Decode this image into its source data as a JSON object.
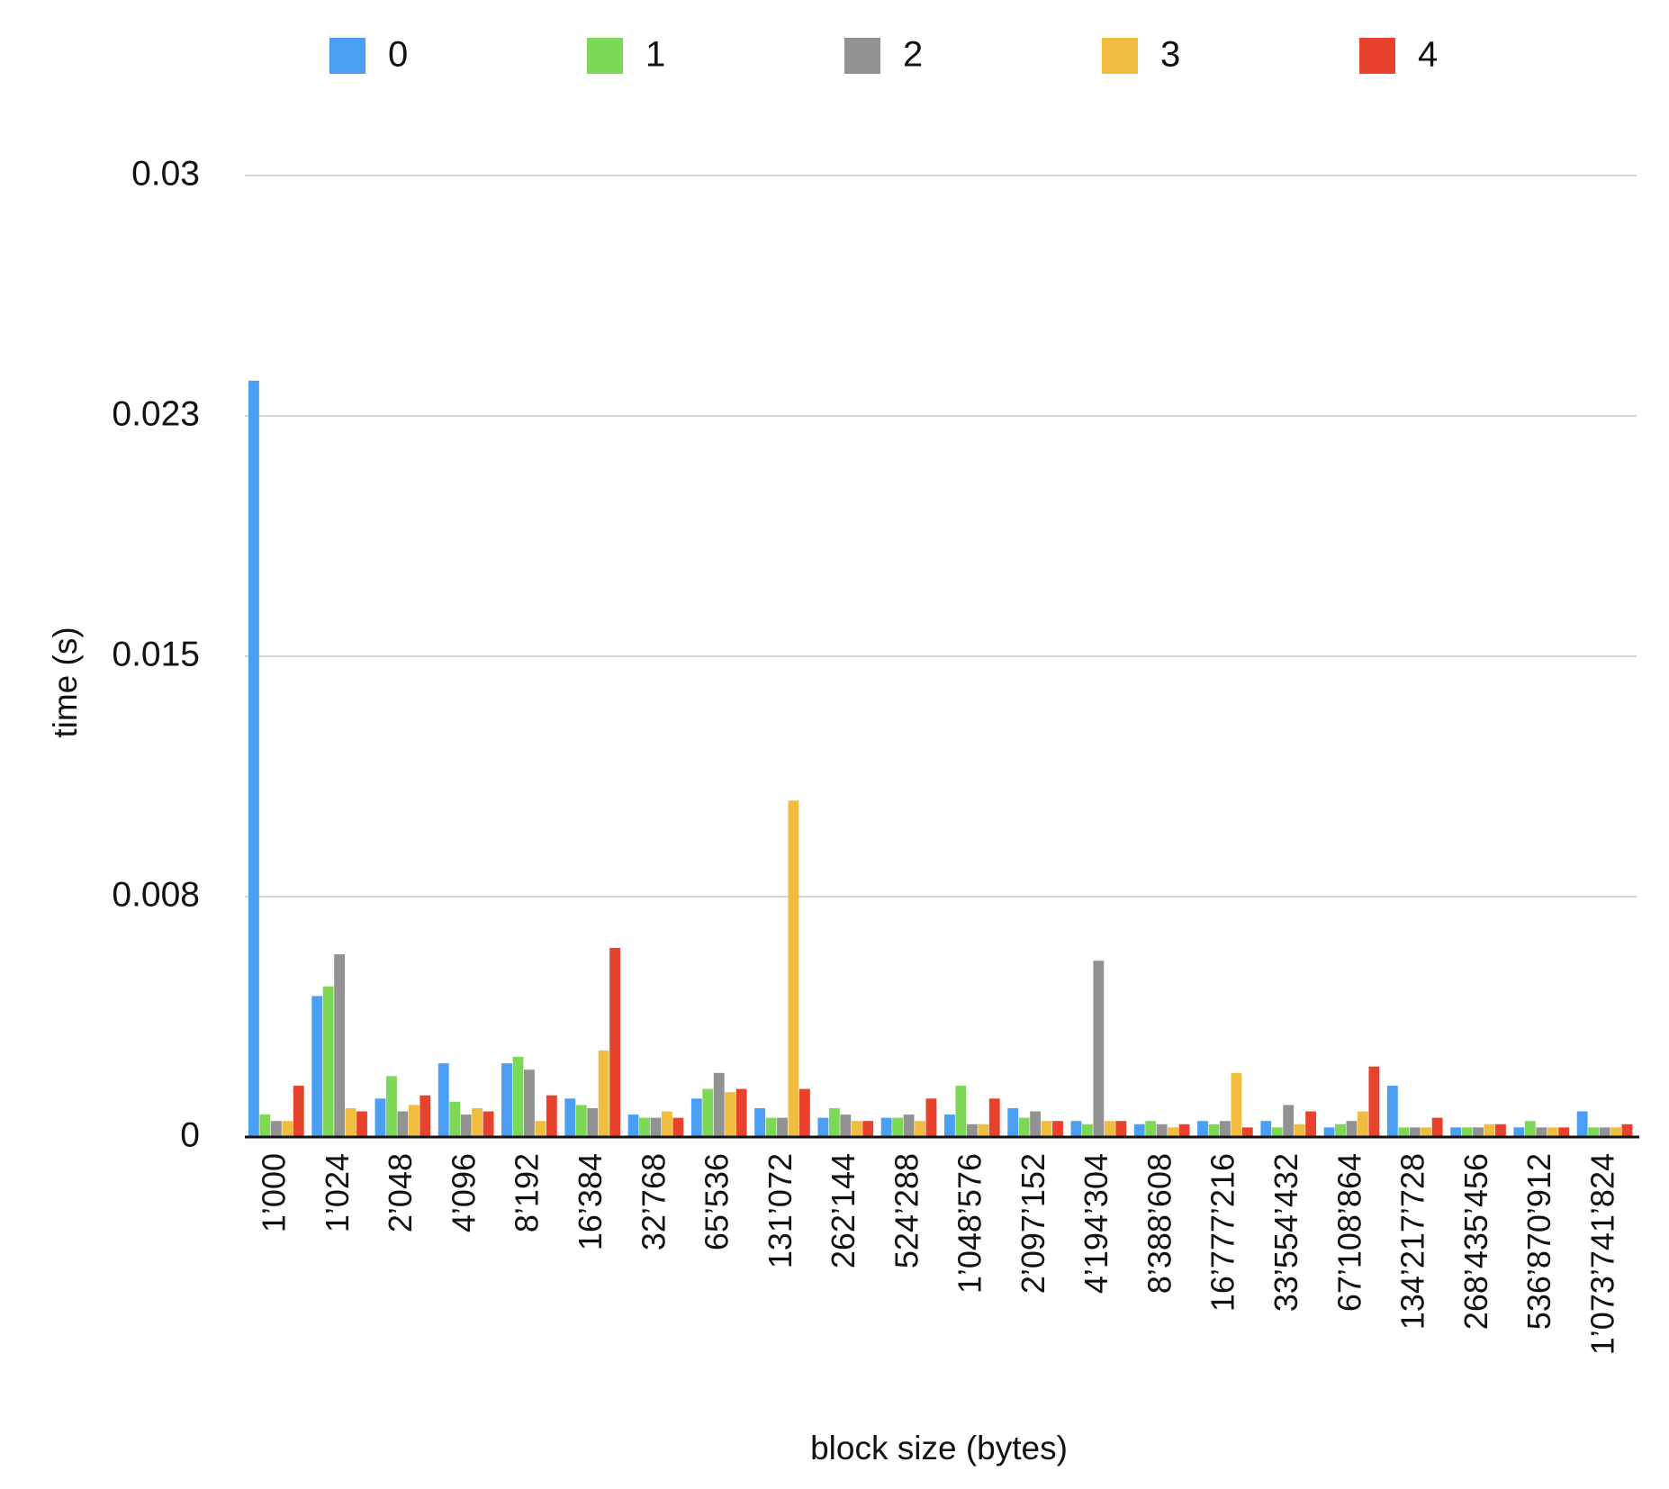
{
  "chart_data": {
    "type": "bar",
    "title": "",
    "xlabel": "block size (bytes)",
    "ylabel": "time (s)",
    "ylim": [
      0,
      0.03
    ],
    "yticks": [
      0,
      0.0075,
      0.015,
      0.0225,
      0.03
    ],
    "ytick_labels": [
      "0",
      "0.008",
      "0.015",
      "0.023",
      "0.03"
    ],
    "grid": true,
    "legend_position": "top",
    "categories": [
      "1’000",
      "1’024",
      "2’048",
      "4’096",
      "8’192",
      "16’384",
      "32’768",
      "65’536",
      "131’072",
      "262’144",
      "524’288",
      "1’048’576",
      "2’097’152",
      "4’194’304",
      "8’388’608",
      "16’777’216",
      "33’554’432",
      "67’108’864",
      "134’217’728",
      "268’435’456",
      "536’870’912",
      "1’073’741’824"
    ],
    "series": [
      {
        "name": "0",
        "color": "#4a9ff5",
        "values": [
          0.0236,
          0.0044,
          0.0012,
          0.0023,
          0.0023,
          0.0012,
          0.0007,
          0.0012,
          0.0009,
          0.0006,
          0.0006,
          0.0007,
          0.0009,
          0.0005,
          0.0004,
          0.0005,
          0.0005,
          0.0003,
          0.0016,
          0.0003,
          0.0003,
          0.0008
        ]
      },
      {
        "name": "1",
        "color": "#7dd855",
        "values": [
          0.0007,
          0.0047,
          0.0019,
          0.0011,
          0.0025,
          0.001,
          0.0006,
          0.0015,
          0.0006,
          0.0009,
          0.0006,
          0.0016,
          0.0006,
          0.0004,
          0.0005,
          0.0004,
          0.0003,
          0.0004,
          0.0003,
          0.0003,
          0.0005,
          0.0003
        ]
      },
      {
        "name": "2",
        "color": "#929292",
        "values": [
          0.0005,
          0.0057,
          0.0008,
          0.0007,
          0.0021,
          0.0009,
          0.0006,
          0.002,
          0.0006,
          0.0007,
          0.0007,
          0.0004,
          0.0008,
          0.0055,
          0.0004,
          0.0005,
          0.001,
          0.0005,
          0.0003,
          0.0003,
          0.0003,
          0.0003
        ]
      },
      {
        "name": "3",
        "color": "#f0bd3f",
        "values": [
          0.0005,
          0.0009,
          0.001,
          0.0009,
          0.0005,
          0.0027,
          0.0008,
          0.0014,
          0.0105,
          0.0005,
          0.0005,
          0.0004,
          0.0005,
          0.0005,
          0.0003,
          0.002,
          0.0004,
          0.0008,
          0.0003,
          0.0004,
          0.0003,
          0.0003
        ]
      },
      {
        "name": "4",
        "color": "#e8422c",
        "values": [
          0.0016,
          0.0008,
          0.0013,
          0.0008,
          0.0013,
          0.0059,
          0.0006,
          0.0015,
          0.0015,
          0.0005,
          0.0012,
          0.0012,
          0.0005,
          0.0005,
          0.0004,
          0.0003,
          0.0008,
          0.0022,
          0.0006,
          0.0004,
          0.0003,
          0.0004
        ]
      }
    ]
  }
}
